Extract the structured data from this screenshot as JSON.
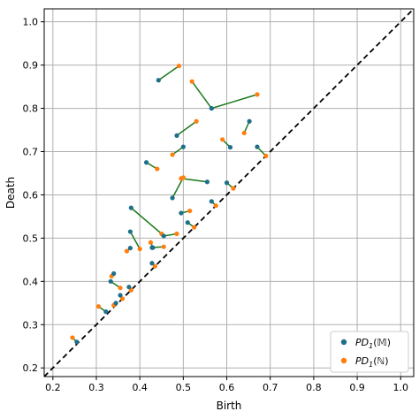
{
  "chart_data": {
    "type": "scatter",
    "title": "",
    "xlabel": "Birth",
    "ylabel": "Death",
    "xlim": [
      0.18,
      1.03
    ],
    "ylim": [
      0.18,
      1.03
    ],
    "xticks": [
      "0.2",
      "0.3",
      "0.4",
      "0.5",
      "0.6",
      "0.7",
      "0.8",
      "0.9",
      "1.0"
    ],
    "yticks": [
      "0.2",
      "0.3",
      "0.4",
      "0.5",
      "0.6",
      "0.7",
      "0.8",
      "0.9",
      "1.0"
    ],
    "grid": true,
    "diagonal": "y = x (dashed)",
    "legend_position": "lower-right",
    "colors": {
      "series_m": "#1f6f8b",
      "series_n": "#ff7f0e",
      "match_line": "#1a7a1a"
    },
    "series": [
      {
        "name": "PD_1(M)",
        "legend_base": "PD",
        "legend_sub": "1",
        "legend_arg": "(𝕄)"
      },
      {
        "name": "PD_1(N)",
        "legend_base": "PD",
        "legend_sub": "1",
        "legend_arg": "(ℕ)"
      }
    ],
    "pairs": [
      {
        "m": [
          0.443,
          0.865
        ],
        "n": [
          0.49,
          0.898
        ]
      },
      {
        "m": [
          0.565,
          0.8
        ],
        "n": [
          0.67,
          0.832
        ]
      },
      {
        "m": [
          0.565,
          0.8
        ],
        "n": [
          0.52,
          0.862
        ]
      },
      {
        "m": [
          0.485,
          0.737
        ],
        "n": [
          0.53,
          0.77
        ]
      },
      {
        "m": [
          0.5,
          0.711
        ],
        "n": [
          0.475,
          0.693
        ]
      },
      {
        "m": [
          0.652,
          0.77
        ],
        "n": [
          0.64,
          0.743
        ]
      },
      {
        "m": [
          0.608,
          0.71
        ],
        "n": [
          0.59,
          0.728
        ]
      },
      {
        "m": [
          0.67,
          0.711
        ],
        "n": [
          0.69,
          0.69
        ]
      },
      {
        "m": [
          0.415,
          0.675
        ],
        "n": [
          0.44,
          0.66
        ]
      },
      {
        "m": [
          0.555,
          0.63
        ],
        "n": [
          0.495,
          0.638
        ]
      },
      {
        "m": [
          0.6,
          0.628
        ],
        "n": [
          0.615,
          0.615
        ]
      },
      {
        "m": [
          0.475,
          0.593
        ],
        "n": [
          0.5,
          0.64
        ]
      },
      {
        "m": [
          0.565,
          0.585
        ],
        "n": [
          0.575,
          0.575
        ]
      },
      {
        "m": [
          0.38,
          0.57
        ],
        "n": [
          0.45,
          0.51
        ]
      },
      {
        "m": [
          0.495,
          0.558
        ],
        "n": [
          0.515,
          0.563
        ]
      },
      {
        "m": [
          0.51,
          0.536
        ],
        "n": [
          0.525,
          0.525
        ]
      },
      {
        "m": [
          0.455,
          0.505
        ],
        "n": [
          0.485,
          0.51
        ]
      },
      {
        "m": [
          0.378,
          0.515
        ],
        "n": [
          0.4,
          0.475
        ]
      },
      {
        "m": [
          0.428,
          0.478
        ],
        "n": [
          0.455,
          0.48
        ]
      },
      {
        "m": [
          0.43,
          0.478
        ],
        "n": [
          0.425,
          0.49
        ]
      },
      {
        "m": [
          0.378,
          0.477
        ],
        "n": [
          0.37,
          0.47
        ]
      },
      {
        "m": [
          0.428,
          0.442
        ],
        "n": [
          0.435,
          0.435
        ]
      },
      {
        "m": [
          0.34,
          0.418
        ],
        "n": [
          0.335,
          0.412
        ]
      },
      {
        "m": [
          0.333,
          0.4
        ],
        "n": [
          0.355,
          0.385
        ]
      },
      {
        "m": [
          0.375,
          0.387
        ],
        "n": [
          0.38,
          0.38
        ]
      },
      {
        "m": [
          0.355,
          0.368
        ],
        "n": [
          0.36,
          0.36
        ]
      },
      {
        "m": [
          0.345,
          0.35
        ],
        "n": [
          0.34,
          0.345
        ]
      },
      {
        "m": [
          0.322,
          0.33
        ],
        "n": [
          0.305,
          0.342
        ]
      },
      {
        "m": [
          0.255,
          0.26
        ],
        "n": [
          0.245,
          0.27
        ]
      }
    ]
  }
}
